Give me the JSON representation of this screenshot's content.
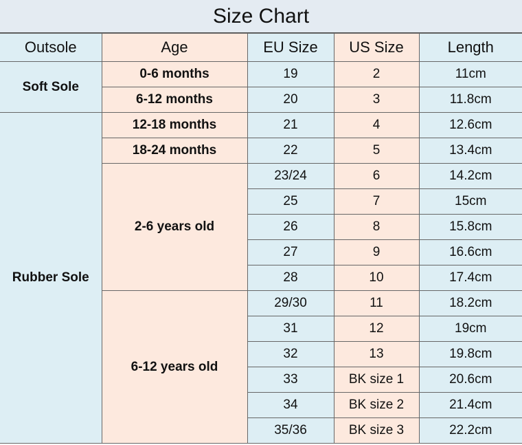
{
  "title": "Size Chart",
  "table": {
    "headers": [
      "Outsole",
      "Age",
      "EU Size",
      "US Size",
      "Length"
    ],
    "outsoles": [
      {
        "label": "Soft Sole",
        "ages": [
          {
            "label": "0-6 months",
            "sizes": [
              {
                "eu": "19",
                "us": "2",
                "length": "11cm"
              }
            ]
          },
          {
            "label": "6-12 months",
            "sizes": [
              {
                "eu": "20",
                "us": "3",
                "length": "11.8cm"
              }
            ]
          }
        ]
      },
      {
        "label": "Rubber Sole",
        "ages": [
          {
            "label": "12-18 months",
            "sizes": [
              {
                "eu": "21",
                "us": "4",
                "length": "12.6cm"
              }
            ]
          },
          {
            "label": "18-24 months",
            "sizes": [
              {
                "eu": "22",
                "us": "5",
                "length": "13.4cm"
              }
            ]
          },
          {
            "label": "2-6 years old",
            "sizes": [
              {
                "eu": "23/24",
                "us": "6",
                "length": "14.2cm"
              },
              {
                "eu": "25",
                "us": "7",
                "length": "15cm"
              },
              {
                "eu": "26",
                "us": "8",
                "length": "15.8cm"
              },
              {
                "eu": "27",
                "us": "9",
                "length": "16.6cm"
              },
              {
                "eu": "28",
                "us": "10",
                "length": "17.4cm"
              }
            ]
          },
          {
            "label": "6-12 years old",
            "sizes": [
              {
                "eu": "29/30",
                "us": "11",
                "length": "18.2cm"
              },
              {
                "eu": "31",
                "us": "12",
                "length": "19cm"
              },
              {
                "eu": "32",
                "us": "13",
                "length": "19.8cm"
              },
              {
                "eu": "33",
                "us": "BK size 1",
                "length": "20.6cm"
              },
              {
                "eu": "34",
                "us": "BK size 2",
                "length": "21.4cm"
              },
              {
                "eu": "35/36",
                "us": "BK size 3",
                "length": "22.2cm"
              }
            ]
          }
        ]
      }
    ]
  }
}
